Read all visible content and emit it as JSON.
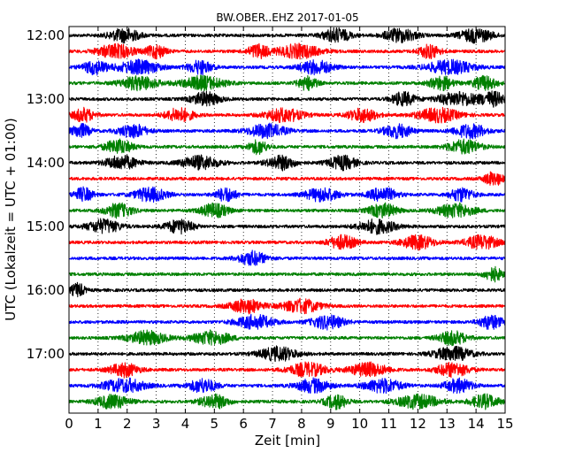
{
  "chart_data": {
    "type": "line",
    "title": "BW.OBER..EHZ 2017-01-05",
    "xlabel": "Zeit  [min]",
    "ylabel": "UTC (Lokalzeit = UTC + 01:00)",
    "xlim": [
      0,
      15
    ],
    "x_ticks": [
      "0",
      "1",
      "2",
      "3",
      "4",
      "5",
      "6",
      "7",
      "8",
      "9",
      "10",
      "11",
      "12",
      "13",
      "14",
      "15"
    ],
    "y_ticks": [
      "12:00",
      "13:00",
      "14:00",
      "15:00",
      "16:00",
      "17:00"
    ],
    "grid": true,
    "trace_interval_min": 15,
    "colors": [
      "#000000",
      "#ff0000",
      "#0000ff",
      "#008000"
    ],
    "series": [
      {
        "start": "12:00",
        "color": "#000000",
        "bursts": [
          [
            1.9,
            1.3
          ],
          [
            9.2,
            1.2
          ],
          [
            11.4,
            1.4
          ],
          [
            14.0,
            1.4
          ]
        ]
      },
      {
        "start": "12:15",
        "color": "#ff0000",
        "bursts": [
          [
            1.6,
            1.6
          ],
          [
            3.0,
            0.8
          ],
          [
            6.5,
            0.9
          ],
          [
            7.9,
            1.8
          ],
          [
            12.4,
            0.9
          ]
        ]
      },
      {
        "start": "12:30",
        "color": "#0000ff",
        "bursts": [
          [
            0.9,
            1.0
          ],
          [
            2.4,
            1.8
          ],
          [
            4.5,
            1.0
          ],
          [
            8.5,
            1.4
          ],
          [
            13.1,
            2.0
          ]
        ]
      },
      {
        "start": "12:45",
        "color": "#008000",
        "bursts": [
          [
            2.4,
            1.6
          ],
          [
            4.6,
            1.8
          ],
          [
            8.2,
            0.8
          ],
          [
            12.8,
            1.0
          ],
          [
            14.3,
            1.0
          ]
        ]
      },
      {
        "start": "13:00",
        "color": "#000000",
        "bursts": [
          [
            4.7,
            1.2
          ],
          [
            11.5,
            1.0
          ],
          [
            13.4,
            1.8
          ],
          [
            14.6,
            1.0
          ]
        ]
      },
      {
        "start": "13:15",
        "color": "#ff0000",
        "bursts": [
          [
            0.5,
            0.9
          ],
          [
            3.8,
            1.2
          ],
          [
            7.4,
            1.6
          ],
          [
            10.1,
            1.2
          ],
          [
            12.7,
            1.8
          ]
        ]
      },
      {
        "start": "13:30",
        "color": "#0000ff",
        "bursts": [
          [
            0.4,
            0.8
          ],
          [
            2.2,
            1.2
          ],
          [
            6.8,
            1.6
          ],
          [
            11.3,
            1.2
          ],
          [
            13.8,
            1.4
          ]
        ]
      },
      {
        "start": "13:45",
        "color": "#008000",
        "bursts": [
          [
            1.7,
            1.2
          ],
          [
            6.5,
            0.8
          ],
          [
            13.6,
            1.4
          ]
        ]
      },
      {
        "start": "14:00",
        "color": "#000000",
        "bursts": [
          [
            1.8,
            1.4
          ],
          [
            4.5,
            1.6
          ],
          [
            7.3,
            1.2
          ],
          [
            9.4,
            1.2
          ]
        ]
      },
      {
        "start": "14:15",
        "color": "#ff0000",
        "bursts": [
          [
            14.6,
            0.8
          ]
        ]
      },
      {
        "start": "14:30",
        "color": "#0000ff",
        "bursts": [
          [
            0.5,
            0.8
          ],
          [
            2.8,
            1.4
          ],
          [
            5.4,
            0.9
          ],
          [
            8.7,
            1.4
          ],
          [
            10.8,
            1.2
          ],
          [
            13.5,
            1.0
          ]
        ]
      },
      {
        "start": "14:45",
        "color": "#008000",
        "bursts": [
          [
            1.7,
            1.2
          ],
          [
            5.0,
            1.2
          ],
          [
            10.8,
            1.2
          ],
          [
            13.3,
            1.6
          ]
        ]
      },
      {
        "start": "15:00",
        "color": "#000000",
        "bursts": [
          [
            1.2,
            1.4
          ],
          [
            3.8,
            1.2
          ],
          [
            10.6,
            1.6
          ]
        ]
      },
      {
        "start": "15:15",
        "color": "#ff0000",
        "bursts": [
          [
            9.4,
            1.2
          ],
          [
            12.0,
            1.4
          ],
          [
            14.2,
            1.4
          ]
        ]
      },
      {
        "start": "15:30",
        "color": "#0000ff",
        "bursts": [
          [
            6.3,
            1.2
          ]
        ]
      },
      {
        "start": "15:45",
        "color": "#008000",
        "bursts": [
          [
            14.6,
            0.8
          ]
        ]
      },
      {
        "start": "16:00",
        "color": "#000000",
        "bursts": [
          [
            0.3,
            0.6
          ]
        ]
      },
      {
        "start": "16:15",
        "color": "#ff0000",
        "bursts": [
          [
            6.1,
            1.4
          ],
          [
            8.0,
            1.6
          ]
        ]
      },
      {
        "start": "16:30",
        "color": "#0000ff",
        "bursts": [
          [
            6.4,
            1.6
          ],
          [
            8.9,
            1.4
          ],
          [
            14.5,
            1.0
          ]
        ]
      },
      {
        "start": "16:45",
        "color": "#008000",
        "bursts": [
          [
            2.7,
            1.6
          ],
          [
            4.9,
            1.6
          ],
          [
            13.2,
            1.2
          ]
        ]
      },
      {
        "start": "17:00",
        "color": "#000000",
        "bursts": [
          [
            7.2,
            1.6
          ],
          [
            13.2,
            1.6
          ]
        ]
      },
      {
        "start": "17:15",
        "color": "#ff0000",
        "bursts": [
          [
            1.9,
            1.2
          ],
          [
            8.2,
            1.6
          ],
          [
            10.3,
            1.6
          ],
          [
            13.2,
            1.4
          ]
        ]
      },
      {
        "start": "17:30",
        "color": "#0000ff",
        "bursts": [
          [
            1.9,
            1.8
          ],
          [
            4.6,
            1.2
          ],
          [
            8.4,
            1.4
          ],
          [
            10.8,
            1.6
          ],
          [
            13.4,
            1.2
          ]
        ]
      },
      {
        "start": "17:45",
        "color": "#008000",
        "bursts": [
          [
            1.5,
            1.4
          ],
          [
            5.0,
            1.2
          ],
          [
            9.2,
            1.0
          ],
          [
            12.0,
            1.8
          ],
          [
            14.3,
            1.2
          ]
        ]
      }
    ]
  }
}
